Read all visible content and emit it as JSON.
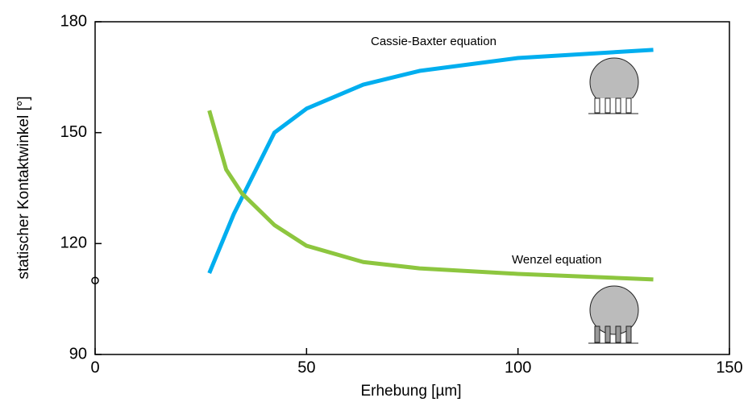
{
  "chart_data": {
    "type": "line",
    "x_label": "Erhebung [µm]",
    "y_label": "statischer Kontaktwinkel [°]",
    "xlim": [
      0,
      150
    ],
    "xticks": [
      0,
      50,
      100,
      150
    ],
    "ylim": [
      90,
      180
    ],
    "yticks": [
      90,
      120,
      150,
      180
    ],
    "series": [
      {
        "name": "Cassie-Baxter equation",
        "color": "#00aeef",
        "x": [
          27,
          32.8,
          42.4,
          50,
          63.4,
          76.7,
          100,
          132
        ],
        "values": [
          112,
          128,
          150,
          156.5,
          163,
          166.7,
          170.2,
          172.4
        ]
      },
      {
        "name": "Wenzel equation",
        "color": "#8dc63f",
        "x": [
          27,
          31,
          34.7,
          42.4,
          50,
          63.4,
          76.7,
          100,
          132
        ],
        "values": [
          156,
          140,
          133.6,
          125,
          119.4,
          115,
          113.3,
          111.8,
          110.3
        ]
      }
    ],
    "point": {
      "x": 0,
      "y": 110
    }
  }
}
